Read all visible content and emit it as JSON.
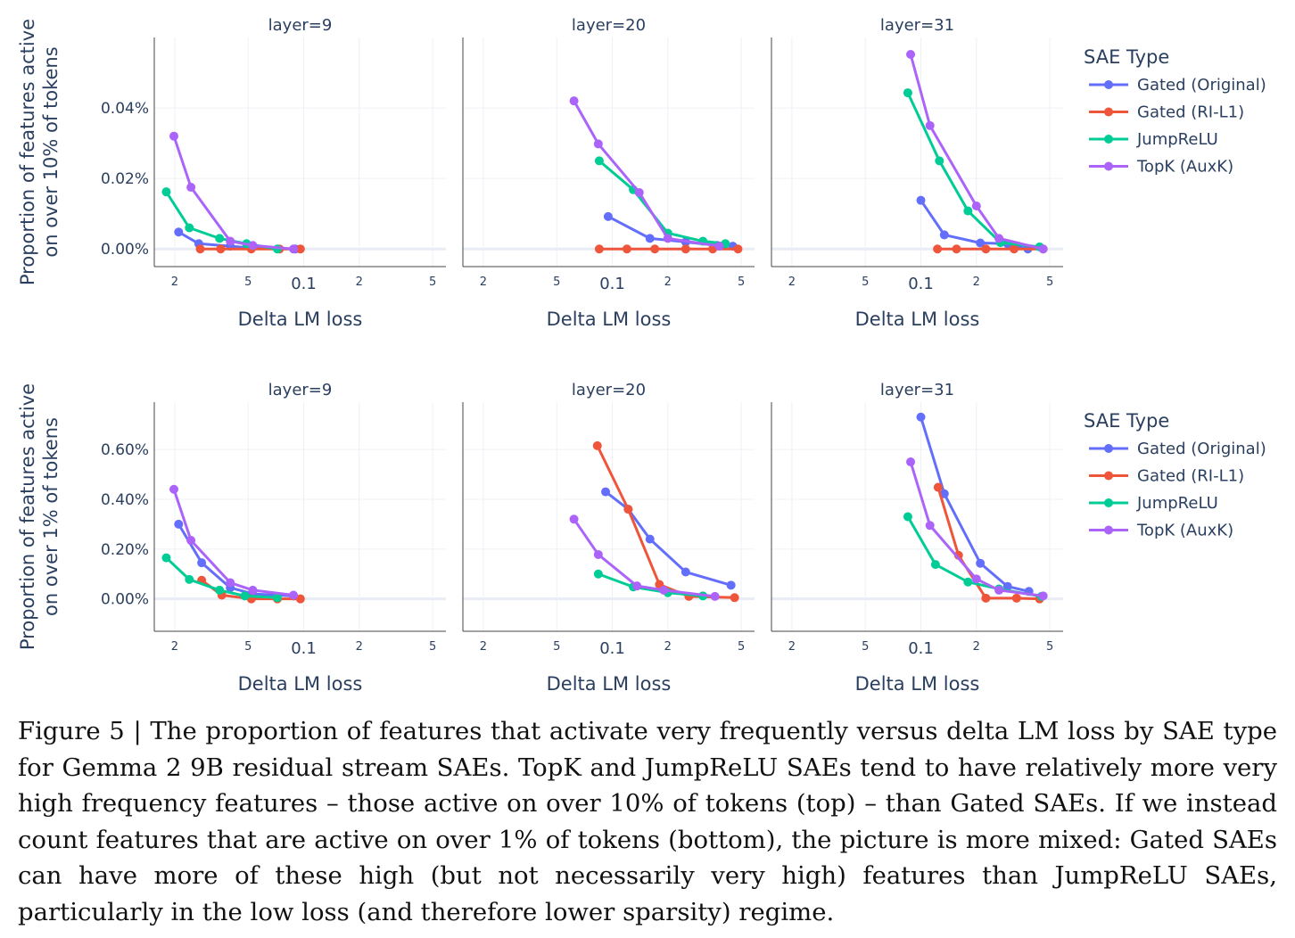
{
  "caption": "Figure 5 | The proportion of features that activate very frequently versus delta LM loss by SAE type for Gemma 2 9B residual stream SAEs. TopK and JumpReLU SAEs tend to have relatively more very high frequency features – those active on over 10% of tokens (top) – than Gated SAEs. If we instead count features that are active on over 1% of tokens (bottom), the picture is more mixed: Gated SAEs can have more of these high (but not necessarily very high) features than JumpReLU SAEs, particularly in the low loss (and therefore lower sparsity) regime.",
  "colors": {
    "Gated (Original)": "#636efa",
    "Gated (RI-L1)": "#ef553b",
    "JumpReLU": "#00cc96",
    "TopK (AuxK)": "#ab63fa"
  },
  "chart_data": [
    {
      "type": "line",
      "row": "top",
      "ylabel": "Proportion of features active on over 10% of tokens",
      "xlabel": "Delta LM loss",
      "xscale": "log",
      "xlim": [
        0.0155,
        0.059
      ],
      "ylim": [
        -0.005,
        0.06
      ],
      "yticks": [
        0,
        0.02,
        0.04
      ],
      "ytick_labels": [
        "0.00%",
        "0.02%",
        "0.04%"
      ],
      "legend_title": "SAE Type",
      "legend_placement": "right",
      "legend": [
        "Gated (Original)",
        "Gated (RI-L1)",
        "JumpReLU",
        "TopK (AuxK)"
      ],
      "panels": [
        {
          "title": "layer=9",
          "xlim": [
            0.0155,
            0.59
          ],
          "xticks": [
            0.02,
            0.05,
            0.1,
            0.2,
            0.5
          ],
          "xtick_labels": [
            "2",
            "5",
            "0.1",
            "2",
            "5"
          ],
          "series": [
            {
              "name": "Gated (Original)",
              "x": [
                0.021,
                0.027,
                0.04,
                0.052,
                0.09
              ],
              "y": [
                0.0048,
                0.0015,
                0.0008,
                0.0003,
                0.0
              ]
            },
            {
              "name": "Gated (RI-L1)",
              "x": [
                0.0275,
                0.0355,
                0.052,
                0.074,
                0.096
              ],
              "y": [
                0.0,
                0.0,
                0.0,
                0.0,
                0.0
              ]
            },
            {
              "name": "JumpReLU",
              "x": [
                0.018,
                0.024,
                0.035,
                0.049,
                0.072
              ],
              "y": [
                0.0162,
                0.006,
                0.003,
                0.0015,
                0.0
              ]
            },
            {
              "name": "TopK (AuxK)",
              "x": [
                0.0198,
                0.0245,
                0.04,
                0.053,
                0.088
              ],
              "y": [
                0.032,
                0.0175,
                0.0022,
                0.001,
                0.0
              ]
            }
          ]
        },
        {
          "title": "layer=20",
          "xlim": [
            0.0155,
            0.59
          ],
          "xticks": [
            0.02,
            0.05,
            0.1,
            0.2,
            0.5
          ],
          "xtick_labels": [
            "2",
            "5",
            "0.1",
            "2",
            "5"
          ],
          "series": [
            {
              "name": "Gated (Original)",
              "x": [
                0.095,
                0.16,
                0.25,
                0.37,
                0.45
              ],
              "y": [
                0.0092,
                0.003,
                0.002,
                0.001,
                0.0008
              ]
            },
            {
              "name": "Gated (RI-L1)",
              "x": [
                0.085,
                0.12,
                0.17,
                0.25,
                0.35,
                0.48
              ],
              "y": [
                0.0,
                0.0,
                0.0,
                0.0,
                0.0,
                0.0
              ]
            },
            {
              "name": "JumpReLU",
              "x": [
                0.085,
                0.13,
                0.2,
                0.31,
                0.41
              ],
              "y": [
                0.025,
                0.0168,
                0.0045,
                0.0022,
                0.0015
              ]
            },
            {
              "name": "TopK (AuxK)",
              "x": [
                0.062,
                0.084,
                0.14,
                0.2,
                0.38
              ],
              "y": [
                0.042,
                0.0298,
                0.016,
                0.003,
                0.0008
              ]
            }
          ]
        },
        {
          "title": "layer=31",
          "xlim": [
            0.0155,
            0.59
          ],
          "xticks": [
            0.02,
            0.05,
            0.1,
            0.2,
            0.5
          ],
          "xtick_labels": [
            "2",
            "5",
            "0.1",
            "2",
            "5"
          ],
          "series": [
            {
              "name": "Gated (Original)",
              "x": [
                0.1,
                0.134,
                0.21,
                0.295,
                0.38
              ],
              "y": [
                0.0138,
                0.004,
                0.0017,
                0.0015,
                0.0
              ]
            },
            {
              "name": "Gated (RI-L1)",
              "x": [
                0.123,
                0.156,
                0.225,
                0.32,
                0.46
              ],
              "y": [
                0.0,
                0.0,
                0.0,
                0.0,
                0.0
              ]
            },
            {
              "name": "JumpReLU",
              "x": [
                0.085,
                0.126,
                0.18,
                0.27,
                0.44
              ],
              "y": [
                0.0443,
                0.025,
                0.0108,
                0.0018,
                0.0006
              ]
            },
            {
              "name": "TopK (AuxK)",
              "x": [
                0.088,
                0.112,
                0.2,
                0.265,
                0.46
              ],
              "y": [
                0.0552,
                0.035,
                0.0122,
                0.003,
                0.0
              ]
            }
          ]
        }
      ]
    },
    {
      "type": "line",
      "row": "bottom",
      "ylabel": "Proportion of features active on over 1% of tokens",
      "xlabel": "Delta LM loss",
      "xscale": "log",
      "ylim": [
        -0.13,
        0.79
      ],
      "yticks": [
        0,
        0.2,
        0.4,
        0.6
      ],
      "ytick_labels": [
        "0.00%",
        "0.20%",
        "0.40%",
        "0.60%"
      ],
      "legend_title": "SAE Type",
      "legend_placement": "right",
      "legend": [
        "Gated (Original)",
        "Gated (RI-L1)",
        "JumpReLU",
        "TopK (AuxK)"
      ],
      "panels": [
        {
          "title": "layer=9",
          "xlim": [
            0.0155,
            0.59
          ],
          "xticks": [
            0.02,
            0.05,
            0.1,
            0.2,
            0.5
          ],
          "xtick_labels": [
            "2",
            "5",
            "0.1",
            "2",
            "5"
          ],
          "series": [
            {
              "name": "Gated (Original)",
              "x": [
                0.021,
                0.028,
                0.04,
                0.053,
                0.088
              ],
              "y": [
                0.3,
                0.145,
                0.045,
                0.02,
                0.012
              ]
            },
            {
              "name": "Gated (RI-L1)",
              "x": [
                0.028,
                0.036,
                0.052,
                0.072,
                0.096
              ],
              "y": [
                0.075,
                0.015,
                0.0,
                0.0,
                0.0
              ]
            },
            {
              "name": "JumpReLU",
              "x": [
                0.018,
                0.024,
                0.035,
                0.048,
                0.072
              ],
              "y": [
                0.165,
                0.078,
                0.035,
                0.012,
                0.005
              ]
            },
            {
              "name": "TopK (AuxK)",
              "x": [
                0.0198,
                0.0245,
                0.04,
                0.053,
                0.088
              ],
              "y": [
                0.44,
                0.235,
                0.065,
                0.035,
                0.015
              ]
            }
          ]
        },
        {
          "title": "layer=20",
          "xlim": [
            0.0155,
            0.59
          ],
          "xticks": [
            0.02,
            0.05,
            0.1,
            0.2,
            0.5
          ],
          "xtick_labels": [
            "2",
            "5",
            "0.1",
            "2",
            "5"
          ],
          "series": [
            {
              "name": "Gated (Original)",
              "x": [
                0.092,
                0.122,
                0.16,
                0.25,
                0.44
              ],
              "y": [
                0.43,
                0.36,
                0.24,
                0.108,
                0.055
              ]
            },
            {
              "name": "Gated (RI-L1)",
              "x": [
                0.083,
                0.122,
                0.18,
                0.26,
                0.46
              ],
              "y": [
                0.615,
                0.36,
                0.058,
                0.01,
                0.005
              ]
            },
            {
              "name": "JumpReLU",
              "x": [
                0.084,
                0.13,
                0.2,
                0.31
              ],
              "y": [
                0.1,
                0.048,
                0.025,
                0.012
              ]
            },
            {
              "name": "TopK (AuxK)",
              "x": [
                0.062,
                0.084,
                0.136,
                0.19,
                0.36
              ],
              "y": [
                0.32,
                0.178,
                0.052,
                0.035,
                0.01
              ]
            }
          ]
        },
        {
          "title": "layer=31",
          "xlim": [
            0.0155,
            0.59
          ],
          "xticks": [
            0.02,
            0.05,
            0.1,
            0.2,
            0.5
          ],
          "xtick_labels": [
            "2",
            "5",
            "0.1",
            "2",
            "5"
          ],
          "series": [
            {
              "name": "Gated (Original)",
              "x": [
                0.1,
                0.134,
                0.21,
                0.295,
                0.385
              ],
              "y": [
                0.73,
                0.422,
                0.143,
                0.05,
                0.03
              ]
            },
            {
              "name": "Gated (RI-L1)",
              "x": [
                0.124,
                0.16,
                0.225,
                0.33,
                0.44
              ],
              "y": [
                0.448,
                0.175,
                0.003,
                0.003,
                0.0
              ]
            },
            {
              "name": "JumpReLU",
              "x": [
                0.085,
                0.12,
                0.18,
                0.265,
                0.45
              ],
              "y": [
                0.33,
                0.138,
                0.068,
                0.04,
                0.01
              ]
            },
            {
              "name": "TopK (AuxK)",
              "x": [
                0.088,
                0.112,
                0.2,
                0.265,
                0.46
              ],
              "y": [
                0.55,
                0.295,
                0.08,
                0.035,
                0.012
              ]
            }
          ]
        }
      ]
    }
  ]
}
